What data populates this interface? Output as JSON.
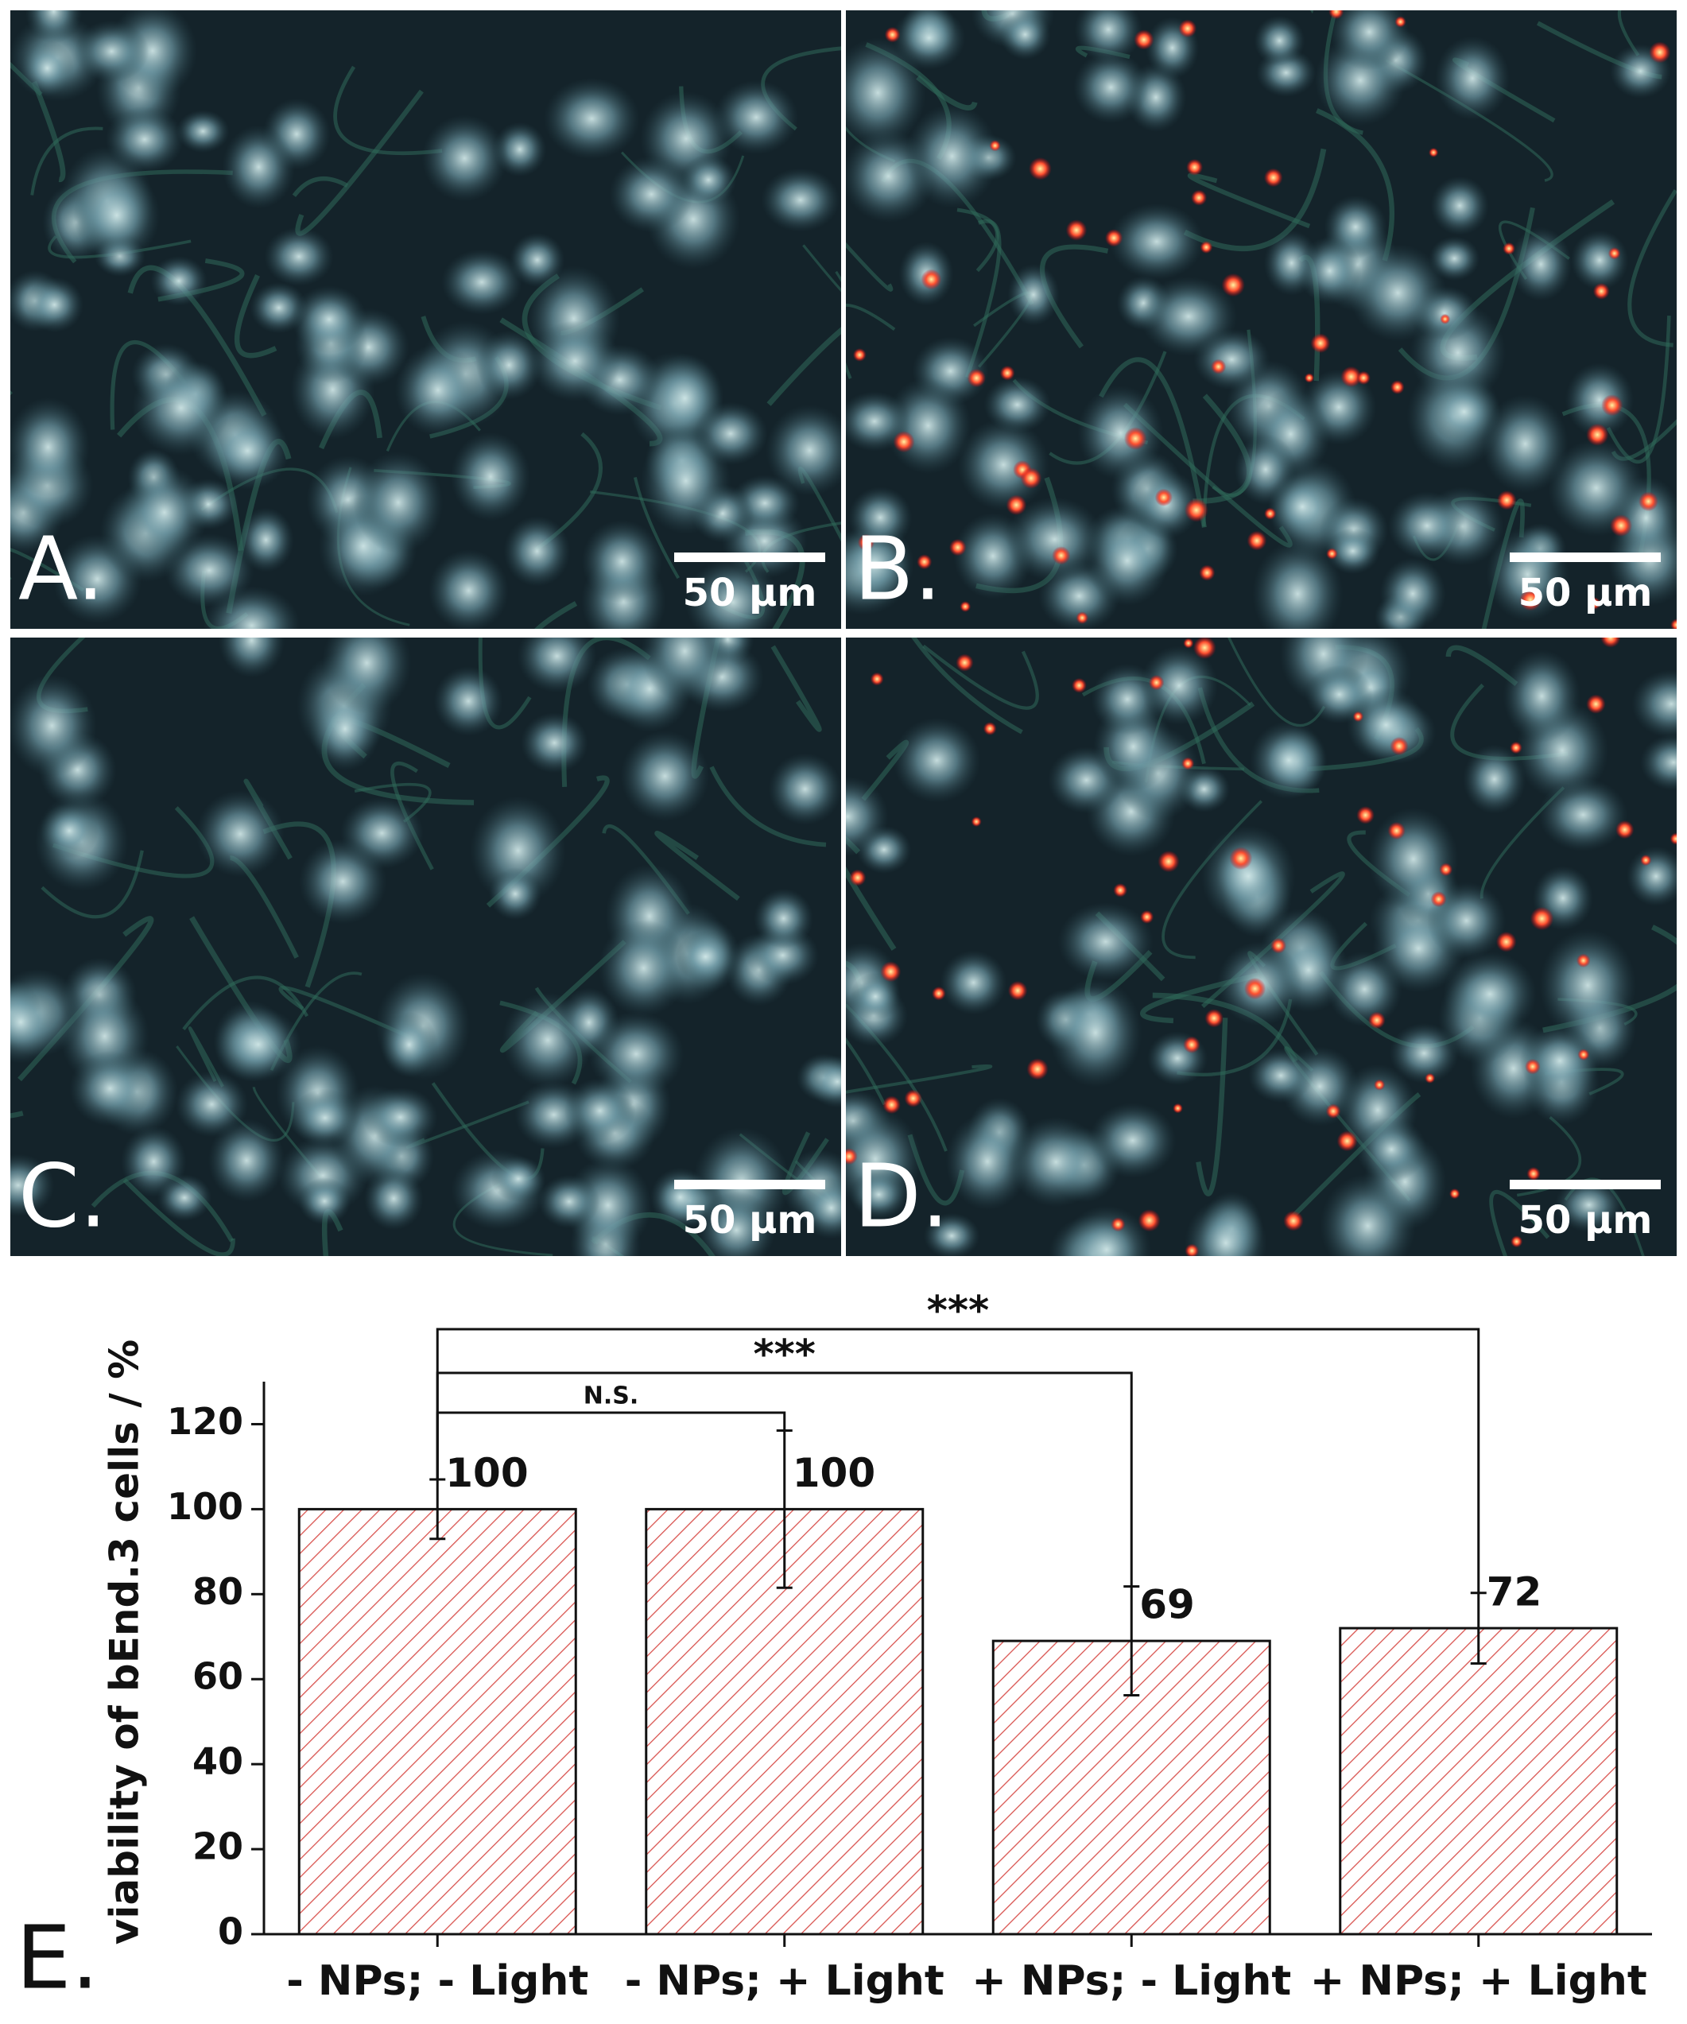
{
  "panels": [
    {
      "label": "A.",
      "scale_bar": "50 µm"
    },
    {
      "label": "B.",
      "scale_bar": "50 µm"
    },
    {
      "label": "C.",
      "scale_bar": "50 µm"
    },
    {
      "label": "D.",
      "scale_bar": "50 µm"
    }
  ],
  "chart_label": "E.",
  "chart_data": {
    "type": "bar",
    "ylabel": "viability of bEnd.3 cells  /  %",
    "categories": [
      "- NPs; - Light",
      "- NPs; + Light",
      "+ NPs; - Light",
      "+ NPs; + Light"
    ],
    "values": [
      100,
      100,
      69,
      72
    ],
    "errors": [
      7,
      18.5,
      12.8,
      8.3
    ],
    "color": "#d9534f",
    "ylim": [
      0,
      130
    ],
    "yticks": [
      0,
      20,
      40,
      60,
      80,
      100,
      120
    ],
    "significance": [
      {
        "to": 1,
        "label": "N.S."
      },
      {
        "to": 2,
        "label": "***"
      },
      {
        "to": 3,
        "label": "***"
      }
    ]
  }
}
